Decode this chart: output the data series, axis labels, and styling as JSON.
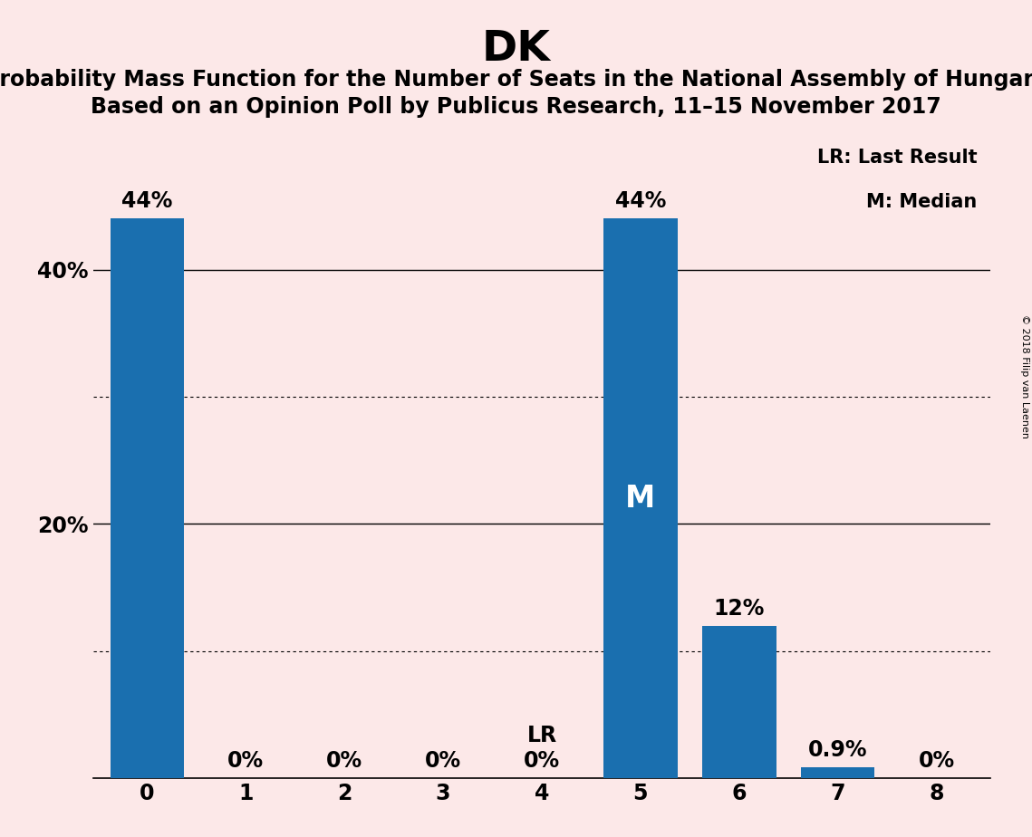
{
  "title": "DK",
  "subtitle1": "Probability Mass Function for the Number of Seats in the National Assembly of Hungary",
  "subtitle2": "Based on an Opinion Poll by Publicus Research, 11–15 November 2017",
  "categories": [
    0,
    1,
    2,
    3,
    4,
    5,
    6,
    7,
    8
  ],
  "values": [
    44,
    0,
    0,
    0,
    0,
    44,
    12,
    0.9,
    0
  ],
  "bar_color": "#1a6faf",
  "background_color": "#fce8e8",
  "ytick_labels": [
    "",
    "20%",
    "40%"
  ],
  "yticks": [
    0,
    20,
    40
  ],
  "ymax": 50,
  "bar_labels": [
    "44%",
    "0%",
    "0%",
    "0%",
    "LR\n0%",
    "44%",
    "12%",
    "0.9%",
    "0%"
  ],
  "median_bar_idx": 5,
  "median_label": "M",
  "lr_bar_idx": 4,
  "legend_text1": "LR: Last Result",
  "legend_text2": "M: Median",
  "copyright_text": "© 2018 Filip van Laenen",
  "grid_solid": [
    20,
    40
  ],
  "grid_dotted": [
    10,
    30
  ],
  "title_fontsize": 34,
  "subtitle_fontsize": 17,
  "tick_fontsize": 17,
  "bar_label_fontsize": 17,
  "legend_fontsize": 15,
  "median_fontsize": 24,
  "bar_width": 0.75
}
